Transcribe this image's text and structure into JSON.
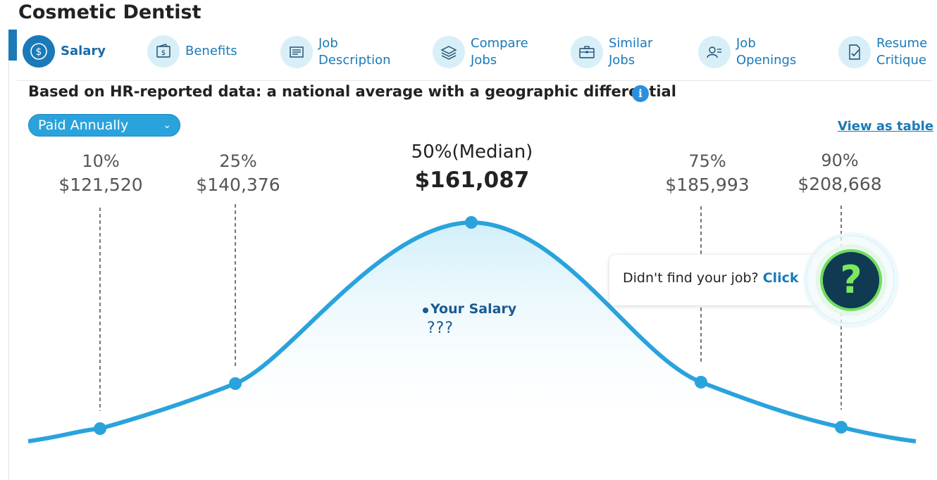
{
  "page": {
    "title": "Cosmetic Dentist"
  },
  "tabs": [
    {
      "label": "Salary",
      "icon": "dollar-coin-icon",
      "active": true
    },
    {
      "label": "Benefits",
      "icon": "wallet-icon",
      "active": false
    },
    {
      "label": "Job\nDescription",
      "icon": "document-icon",
      "active": false
    },
    {
      "label": "Compare\nJobs",
      "icon": "layers-icon",
      "active": false
    },
    {
      "label": "Similar\nJobs",
      "icon": "briefcase-icon",
      "active": false
    },
    {
      "label": "Job\nOpenings",
      "icon": "person-card-icon",
      "active": false
    },
    {
      "label": "Resume\nCritique",
      "icon": "resume-check-icon",
      "active": false
    }
  ],
  "header": {
    "subtitle": "Based on HR-reported data: a national average with a geographic differential",
    "info_icon": "i"
  },
  "controls": {
    "pay_period": "Paid Annually",
    "view_as_table": "View as table"
  },
  "chart_data": {
    "type": "area",
    "points": [
      {
        "percentile": "10%",
        "value": "$121,520",
        "salary": 121520
      },
      {
        "percentile": "25%",
        "value": "$140,376",
        "salary": 140376
      },
      {
        "percentile": "50%(Median)",
        "value": "$161,087",
        "salary": 161087
      },
      {
        "percentile": "75%",
        "value": "$185,993",
        "salary": 185993
      },
      {
        "percentile": "90%",
        "value": "$208,668",
        "salary": 208668
      }
    ]
  },
  "your_salary": {
    "label": "Your Salary",
    "value": "???"
  },
  "help": {
    "text": "Didn't find your job?",
    "click": "Click",
    "icon_glyph": "?"
  },
  "colors": {
    "accent": "#1a7ab8",
    "curve": "#2aa3dc",
    "help_green": "#6fdc5e",
    "help_dark": "#0f3a52"
  }
}
